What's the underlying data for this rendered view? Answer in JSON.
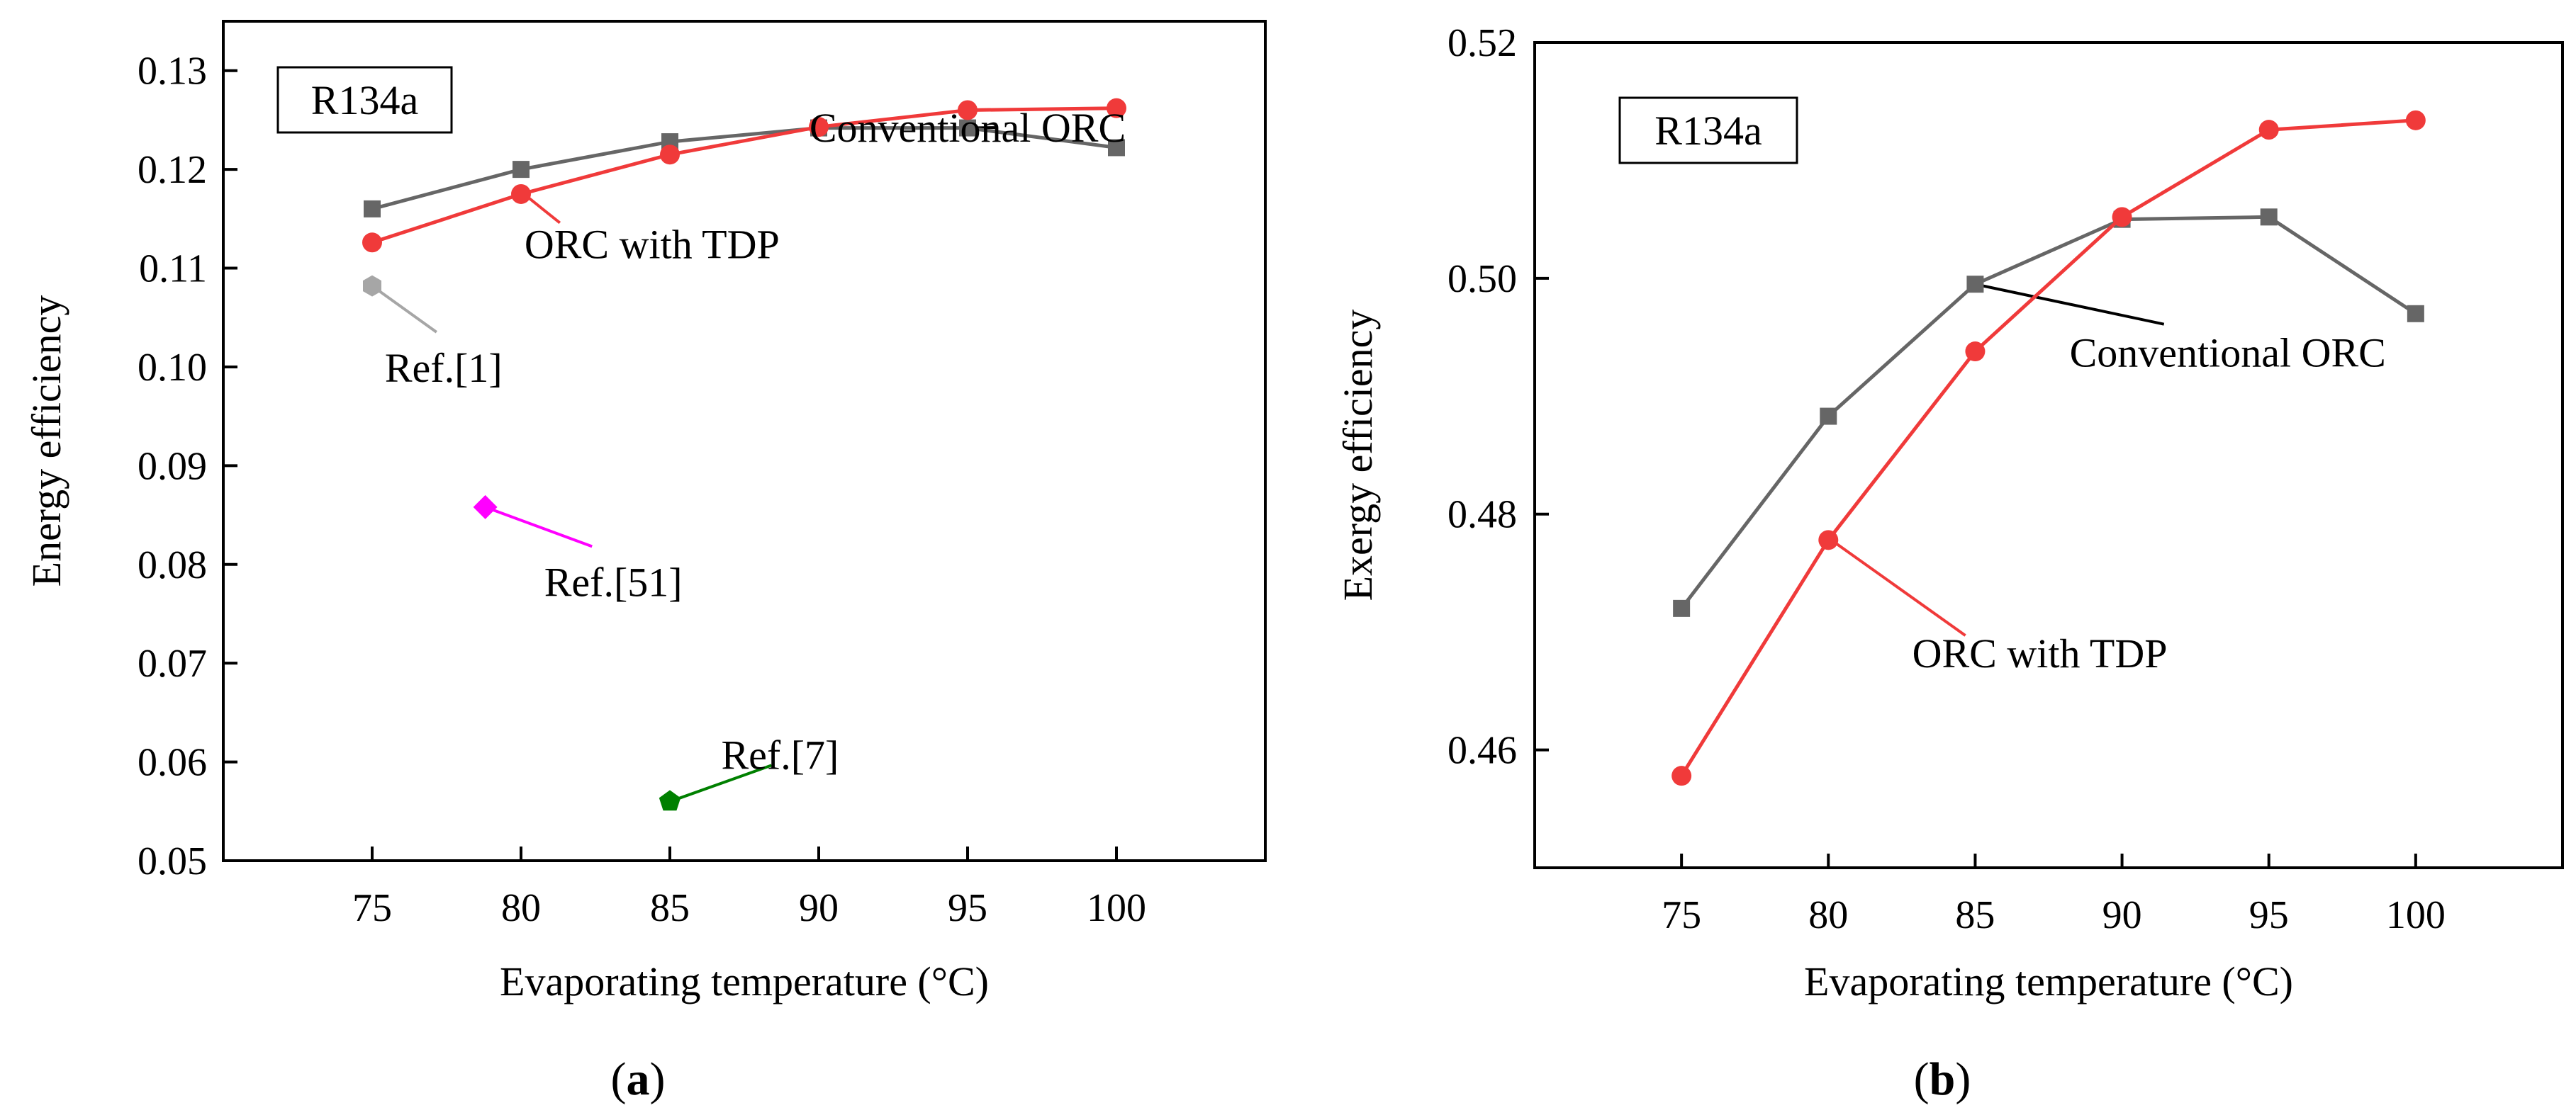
{
  "figure": {
    "colors": {
      "conventional": "#666666",
      "tdp": "#f03a3a",
      "ref1": "#a6a6a6",
      "ref51": "#ff00ff",
      "ref7": "#008000",
      "axis": "#000000"
    }
  },
  "chart_data": [
    {
      "type": "line",
      "panel_label": "a",
      "title": "",
      "box_label": "R134a",
      "xlabel": "Evaporating temperature (°C)",
      "ylabel": "Energy efficiency",
      "xlim": [
        70,
        105
      ],
      "ylim": [
        0.05,
        0.135
      ],
      "xticks": [
        75,
        80,
        85,
        90,
        95,
        100
      ],
      "xtick_labels": [
        "75",
        "80",
        "85",
        "90",
        "95",
        "100"
      ],
      "yticks": [
        0.05,
        0.06,
        0.07,
        0.08,
        0.09,
        0.1,
        0.11,
        0.12,
        0.13
      ],
      "ytick_labels": [
        "0.05",
        "0.06",
        "0.07",
        "0.08",
        "0.09",
        "0.10",
        "0.11",
        "0.12",
        "0.13"
      ],
      "x": [
        75,
        80,
        85,
        90,
        95,
        100
      ],
      "series": [
        {
          "name": "Conventional ORC",
          "marker": "square",
          "values": [
            0.116,
            0.12,
            0.1228,
            0.1242,
            0.1242,
            0.1222
          ]
        },
        {
          "name": "ORC with TDP",
          "marker": "circle",
          "values": [
            0.1126,
            0.1175,
            0.1215,
            0.1243,
            0.126,
            0.1262
          ]
        }
      ],
      "reference_points": [
        {
          "name": "Ref.[1]",
          "marker": "hexagon",
          "x": 75,
          "y": 0.1082
        },
        {
          "name": "Ref.[51]",
          "marker": "diamond",
          "x": 78.8,
          "y": 0.0858
        },
        {
          "name": "Ref.[7]",
          "marker": "pentagon",
          "x": 85,
          "y": 0.056
        }
      ],
      "annotations": [
        {
          "text": "Conventional ORC",
          "x": 95.0,
          "y": 0.1228,
          "point_x": 95,
          "point_y": 0.1242
        },
        {
          "text": "ORC with TDP",
          "x": 84.4,
          "y": 0.111,
          "point_x": 80.1,
          "point_y": 0.1175
        },
        {
          "text": "Ref.[1]",
          "x": 77.4,
          "y": 0.0985,
          "point_x": 75,
          "point_y": 0.1082
        },
        {
          "text": "Ref.[51]",
          "x": 83.1,
          "y": 0.0768,
          "point_x": 78.8,
          "point_y": 0.0858
        },
        {
          "text": "Ref.[7]",
          "x": 88.7,
          "y": 0.0593,
          "point_x": 85.2,
          "point_y": 0.0562
        }
      ]
    },
    {
      "type": "line",
      "panel_label": "b",
      "title": "",
      "box_label": "R134a",
      "xlabel": "Evaporating temperature (°C)",
      "ylabel": "Exergy efficiency",
      "xlim": [
        70,
        105
      ],
      "ylim": [
        0.45,
        0.52
      ],
      "xticks": [
        75,
        80,
        85,
        90,
        95,
        100
      ],
      "xtick_labels": [
        "75",
        "80",
        "85",
        "90",
        "95",
        "100"
      ],
      "yticks": [
        0.46,
        0.48,
        0.5,
        0.52
      ],
      "ytick_labels": [
        "0.46",
        "0.48",
        "0.50",
        "0.52"
      ],
      "x": [
        75,
        80,
        85,
        90,
        95,
        100
      ],
      "series": [
        {
          "name": "Conventional ORC",
          "marker": "square",
          "values": [
            0.472,
            0.4883,
            0.4995,
            0.505,
            0.5052,
            0.497
          ]
        },
        {
          "name": "ORC with TDP",
          "marker": "circle",
          "values": [
            0.4578,
            0.4778,
            0.4938,
            0.5052,
            0.5126,
            0.5134
          ]
        }
      ],
      "annotations": [
        {
          "text": "Conventional ORC",
          "x": 93.6,
          "y": 0.4925,
          "point_x": 85,
          "point_y": 0.4995
        },
        {
          "text": "ORC with TDP",
          "x": 87.2,
          "y": 0.467,
          "point_x": 80.1,
          "point_y": 0.4778
        }
      ]
    }
  ]
}
